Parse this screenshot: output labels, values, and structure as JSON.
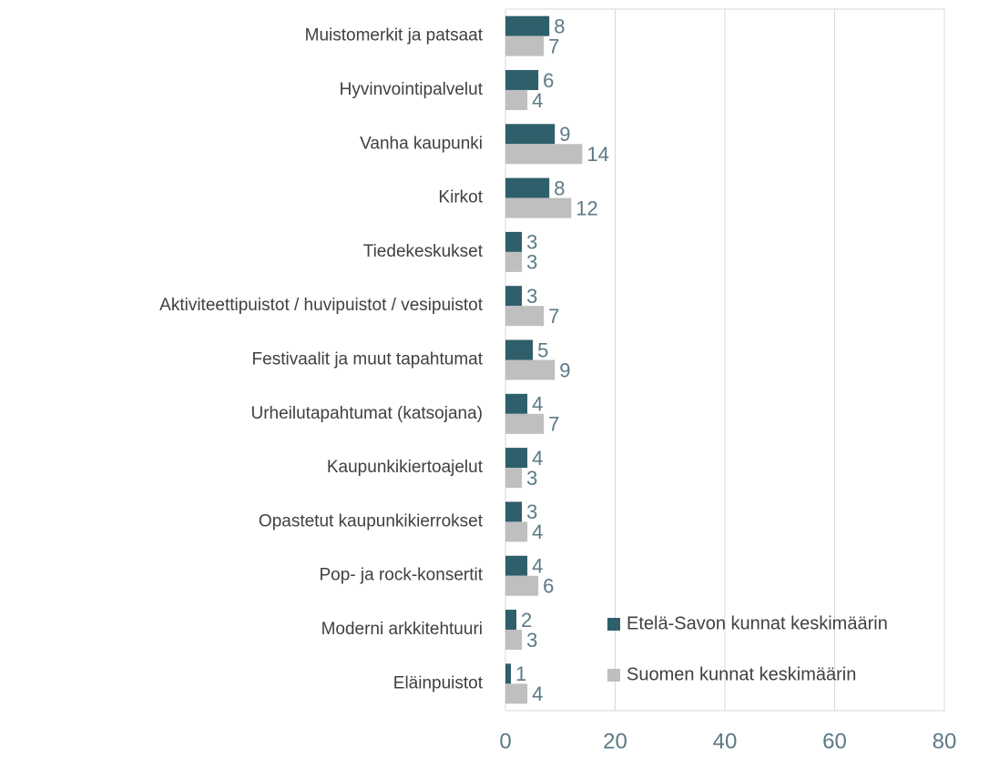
{
  "chart_data": {
    "type": "bar",
    "orientation": "horizontal",
    "categories": [
      "Muistomerkit ja patsaat",
      "Hyvinvointipalvelut",
      "Vanha kaupunki",
      "Kirkot",
      "Tiedekeskukset",
      "Aktiviteettipuistot / huvipuistot / vesipuistot",
      "Festivaalit ja muut tapahtumat",
      "Urheilutapahtumat (katsojana)",
      "Kaupunkikiertoajelut",
      "Opastetut kaupunkikierrokset",
      "Pop- ja rock-konsertit",
      "Moderni arkkitehtuuri",
      "Eläinpuistot"
    ],
    "series": [
      {
        "name": "Etelä-Savon kunnat keskimäärin",
        "color": "#2e5f6b",
        "values": [
          8,
          6,
          9,
          8,
          3,
          3,
          5,
          4,
          4,
          3,
          4,
          2,
          1
        ]
      },
      {
        "name": "Suomen kunnat keskimäärin",
        "color": "#bfbfbf",
        "values": [
          7,
          4,
          14,
          12,
          3,
          7,
          9,
          7,
          3,
          4,
          6,
          3,
          4
        ]
      }
    ],
    "xlim": [
      0,
      80
    ],
    "xticks": [
      0,
      20,
      40,
      60,
      80
    ],
    "grid": true,
    "legend": "lower right"
  }
}
